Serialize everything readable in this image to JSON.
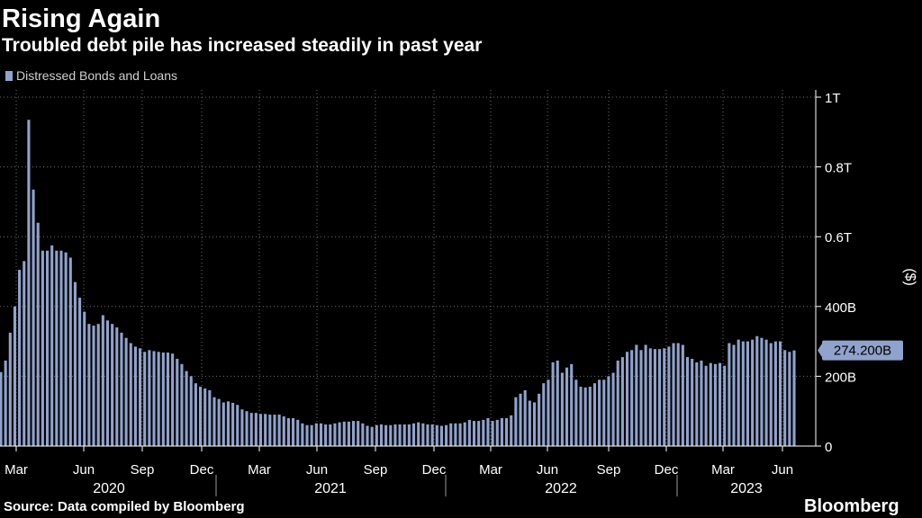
{
  "header": {
    "title": "Rising Again",
    "subtitle": "Troubled debt pile has increased steadily in past year"
  },
  "footer": {
    "source": "Source: Data compiled by Bloomberg",
    "brand": "Bloomberg"
  },
  "colors": {
    "background": "#000000",
    "bar": "#8fa3cc",
    "grid": "#6e6e6e",
    "text": "#ffffff"
  },
  "chart_data": {
    "type": "bar",
    "title": "Rising Again",
    "subtitle": "Troubled debt pile has increased steadily in past year",
    "legend": [
      "Distressed Bonds and Loans"
    ],
    "legend_position": "top-left",
    "ylabel": "($)",
    "ylim": [
      0,
      1000
    ],
    "y_unit": "billions USD",
    "y_ticks": [
      0,
      200,
      400,
      600,
      800,
      1000
    ],
    "y_tick_labels": [
      "0",
      "200B",
      "400B",
      "0.6T",
      "0.8T",
      "1T"
    ],
    "x_tick_labels": [
      "Mar",
      "Jun",
      "Sep",
      "Dec",
      "Mar",
      "Jun",
      "Sep",
      "Dec",
      "Mar",
      "Jun",
      "Sep",
      "Dec",
      "Mar",
      "Jun"
    ],
    "x_year_labels": [
      "2020",
      "2021",
      "2022",
      "2023"
    ],
    "grid": true,
    "last_value_label": "274.200B",
    "series": [
      {
        "name": "Distressed Bonds and Loans",
        "values": [
          212,
          245,
          325,
          400,
          505,
          530,
          935,
          735,
          640,
          560,
          560,
          575,
          560,
          560,
          555,
          540,
          470,
          425,
          385,
          350,
          345,
          350,
          375,
          360,
          350,
          340,
          325,
          310,
          295,
          285,
          280,
          270,
          275,
          272,
          270,
          268,
          268,
          265,
          250,
          235,
          215,
          200,
          180,
          170,
          165,
          160,
          140,
          135,
          125,
          128,
          124,
          118,
          105,
          100,
          95,
          95,
          92,
          92,
          90,
          90,
          90,
          85,
          80,
          80,
          75,
          65,
          60,
          60,
          65,
          65,
          62,
          62,
          65,
          68,
          70,
          70,
          72,
          72,
          65,
          58,
          55,
          60,
          62,
          60,
          60,
          62,
          62,
          62,
          62,
          65,
          68,
          65,
          62,
          62,
          60,
          58,
          60,
          65,
          65,
          65,
          68,
          75,
          72,
          72,
          75,
          80,
          72,
          75,
          80,
          80,
          88,
          140,
          150,
          160,
          130,
          125,
          150,
          180,
          190,
          240,
          245,
          210,
          225,
          235,
          190,
          170,
          168,
          170,
          180,
          190,
          190,
          200,
          210,
          245,
          255,
          270,
          275,
          290,
          275,
          290,
          280,
          278,
          278,
          280,
          285,
          295,
          295,
          290,
          255,
          250,
          240,
          245,
          230,
          238,
          235,
          238,
          230,
          295,
          290,
          305,
          300,
          300,
          305,
          315,
          310,
          305,
          295,
          300,
          300,
          275,
          270,
          274.2
        ]
      }
    ]
  }
}
